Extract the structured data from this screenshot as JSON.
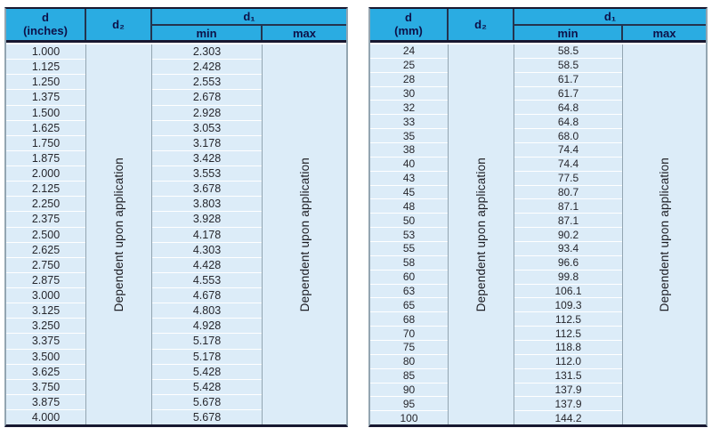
{
  "colors": {
    "header_bg": "#2aace2",
    "header_text": "#0d1148",
    "body_bg": "#dcecf8",
    "dark_line": "#181830",
    "side_border": "#93a5b1"
  },
  "left_table": {
    "header": {
      "d_line1": "d",
      "d_line2": "(inches)",
      "d2": "d₂",
      "d1": "d₁",
      "min": "min",
      "max": "max"
    },
    "d2_note": "Dependent upon application",
    "max_note": "Dependent upon application",
    "rows": [
      {
        "d": "1.000",
        "min": "2.303"
      },
      {
        "d": "1.125",
        "min": "2.428"
      },
      {
        "d": "1.250",
        "min": "2.553"
      },
      {
        "d": "1.375",
        "min": "2.678"
      },
      {
        "d": "1.500",
        "min": "2.928"
      },
      {
        "d": "1.625",
        "min": "3.053"
      },
      {
        "d": "1.750",
        "min": "3.178"
      },
      {
        "d": "1.875",
        "min": "3.428"
      },
      {
        "d": "2.000",
        "min": "3.553"
      },
      {
        "d": "2.125",
        "min": "3.678"
      },
      {
        "d": "2.250",
        "min": "3.803"
      },
      {
        "d": "2.375",
        "min": "3.928"
      },
      {
        "d": "2.500",
        "min": "4.178"
      },
      {
        "d": "2.625",
        "min": "4.303"
      },
      {
        "d": "2.750",
        "min": "4.428"
      },
      {
        "d": "2.875",
        "min": "4.553"
      },
      {
        "d": "3.000",
        "min": "4.678"
      },
      {
        "d": "3.125",
        "min": "4.803"
      },
      {
        "d": "3.250",
        "min": "4.928"
      },
      {
        "d": "3.375",
        "min": "5.178"
      },
      {
        "d": "3.500",
        "min": "5.178"
      },
      {
        "d": "3.625",
        "min": "5.428"
      },
      {
        "d": "3.750",
        "min": "5.428"
      },
      {
        "d": "3.875",
        "min": "5.678"
      },
      {
        "d": "4.000",
        "min": "5.678"
      }
    ]
  },
  "right_table": {
    "header": {
      "d_line1": "d",
      "d_line2": "(mm)",
      "d2": "d₂",
      "d1": "d₁",
      "min": "min",
      "max": "max"
    },
    "d2_note": "Dependent upon application",
    "max_note": "Dependent upon application",
    "rows": [
      {
        "d": "24",
        "min": "58.5"
      },
      {
        "d": "25",
        "min": "58.5"
      },
      {
        "d": "28",
        "min": "61.7"
      },
      {
        "d": "30",
        "min": "61.7"
      },
      {
        "d": "32",
        "min": "64.8"
      },
      {
        "d": "33",
        "min": "64.8"
      },
      {
        "d": "35",
        "min": "68.0"
      },
      {
        "d": "38",
        "min": "74.4"
      },
      {
        "d": "40",
        "min": "74.4"
      },
      {
        "d": "43",
        "min": "77.5"
      },
      {
        "d": "45",
        "min": "80.7"
      },
      {
        "d": "48",
        "min": "87.1"
      },
      {
        "d": "50",
        "min": "87.1"
      },
      {
        "d": "53",
        "min": "90.2"
      },
      {
        "d": "55",
        "min": "93.4"
      },
      {
        "d": "58",
        "min": "96.6"
      },
      {
        "d": "60",
        "min": "99.8"
      },
      {
        "d": "63",
        "min": "106.1"
      },
      {
        "d": "65",
        "min": "109.3"
      },
      {
        "d": "68",
        "min": "112.5"
      },
      {
        "d": "70",
        "min": "112.5"
      },
      {
        "d": "75",
        "min": "118.8"
      },
      {
        "d": "80",
        "min": "112.0"
      },
      {
        "d": "85",
        "min": "131.5"
      },
      {
        "d": "90",
        "min": "137.9"
      },
      {
        "d": "95",
        "min": "137.9"
      },
      {
        "d": "100",
        "min": "144.2"
      }
    ]
  }
}
